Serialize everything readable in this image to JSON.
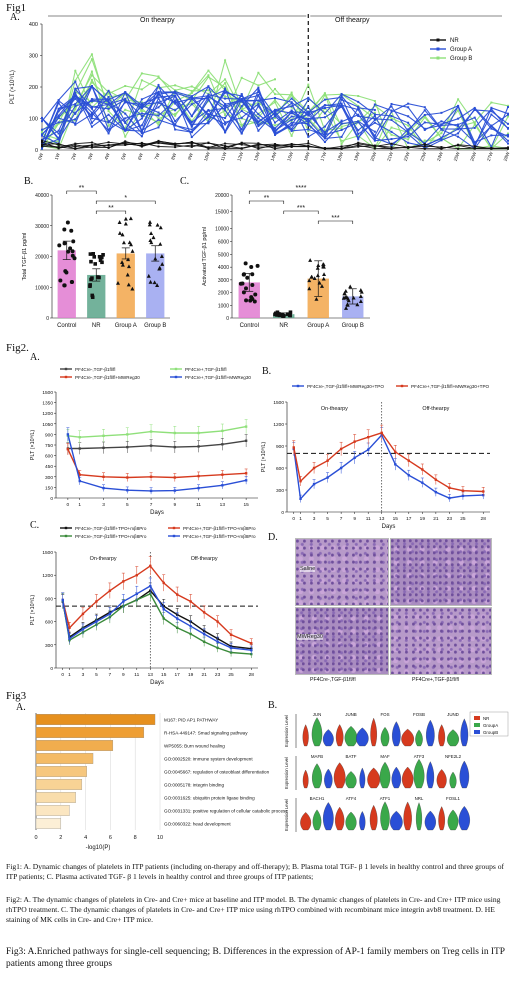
{
  "fig1": {
    "label": "Fig1",
    "panel_a": "A.",
    "panel_b": "B.",
    "panel_c": "C.",
    "on_therapy": "On thearpy",
    "off_therapy": "Off thearpy"
  },
  "fig2": {
    "label": "Fig2.",
    "panel_a": "A.",
    "panel_b": "B.",
    "panel_c": "C.",
    "panel_d": "D.",
    "he": {
      "row1": "Saline",
      "row2": "MWReg30",
      "col1": "PF4Cre-,TGF-β1fl/fl",
      "col2": "PF4Cre+,TGF-β1fl/fl"
    }
  },
  "fig3": {
    "label": "Fig3",
    "panel_a": "A.",
    "panel_b": "B."
  },
  "captions": {
    "fig1": "Fig1: A. Dynamic changes of platelets in ITP patients (including on-therapy and off-therapy); B. Plasma total TGF- β 1 levels in healthy control and three groups of ITP patients; C. Plasma activated TGF- β 1 levels in healthy control and three groups of ITP patients;",
    "fig2": "Fig2: A. The dynamic changes of platelets in Cre- and Cre+ mice at baseline and ITP model. B. The dynamic changes of platelets in Cre- and Cre+ ITP mice using rhTPO treatment. C. The dynamic changes of platelets in Cre- and Cre+ ITP mice using rhTPO combined with recombinant mice integrin avb8 treatment. D. HE staining of MK cells in Cre- and Cre+ ITP mice.",
    "fig3": "Fig3: A.Enriched pathways for single-cell sequencing; B. Differences in the expression of AP-1 family members on Treg cells in ITP patients among three groups"
  },
  "chart_data": [
    {
      "id": "fig1A",
      "type": "line",
      "title": "",
      "xlabel": "",
      "ylabel": "PLT (×10⁹/L)",
      "categories": [
        "0W",
        "1W",
        "2W",
        "3W",
        "4W",
        "5W",
        "6W",
        "7W",
        "8W",
        "9W",
        "10W",
        "11W",
        "12W",
        "13W",
        "14W",
        "15W",
        "16W",
        "17W",
        "18W",
        "19W",
        "20W",
        "21W",
        "22W",
        "23W",
        "24W",
        "25W",
        "26W",
        "27W",
        "28W"
      ],
      "ylim": [
        0,
        400
      ],
      "yticks": [
        0,
        100,
        200,
        300,
        400
      ],
      "legend": [
        "NR",
        "Group A",
        "Group B"
      ],
      "colors": {
        "NR": "#111111",
        "Group A": "#2a4fd6",
        "Group B": "#8fe07a"
      },
      "series_note_values": {
        "NR": [
          20,
          15,
          10,
          12,
          18,
          25,
          22,
          20,
          15,
          18,
          12,
          10,
          15,
          14,
          10,
          12,
          14,
          12,
          10,
          14,
          12,
          10,
          15,
          12,
          10,
          14,
          12,
          10,
          12
        ],
        "Group A (mean)": [
          60,
          90,
          150,
          140,
          120,
          130,
          110,
          140,
          120,
          110,
          135,
          125,
          120,
          130,
          115,
          110,
          100,
          95,
          110,
          90,
          85,
          80,
          90,
          75,
          80,
          85,
          70,
          75,
          70
        ],
        "Group B (mean)": [
          40,
          80,
          180,
          220,
          150,
          130,
          200,
          160,
          190,
          150,
          170,
          200,
          140,
          160,
          150,
          130,
          120,
          110,
          100,
          95,
          90,
          80,
          85,
          70,
          80,
          75,
          65,
          70,
          60
        ]
      }
    },
    {
      "id": "fig1B",
      "type": "bar",
      "ylabel": "Total TGF-β1 pg/ml",
      "categories": [
        "Control",
        "NR",
        "Group A",
        "Group B"
      ],
      "values": [
        22000,
        14000,
        21000,
        21000
      ],
      "errors": [
        3000,
        2000,
        1800,
        2500
      ],
      "ylim": [
        0,
        40000
      ],
      "yticks": [
        0,
        10000,
        20000,
        30000,
        40000
      ],
      "colors": [
        "#e07ad0",
        "#5aa58a",
        "#f2a64a",
        "#9aa3f0"
      ],
      "sig": [
        {
          "from": 0,
          "to": 1,
          "label": "**"
        },
        {
          "from": 1,
          "to": 3,
          "label": "*"
        },
        {
          "from": 1,
          "to": 2,
          "label": "**"
        }
      ]
    },
    {
      "id": "fig1C",
      "type": "bar",
      "ylabel": "Activated TGF-β1 pg/ml",
      "categories": [
        "Control",
        "NR",
        "Group A",
        "Group B"
      ],
      "values": [
        2800,
        300,
        3100,
        1700
      ],
      "errors": [
        700,
        100,
        1400,
        600
      ],
      "ylim": [
        0,
        20000
      ],
      "yticks": [
        0,
        1000,
        2000,
        3000,
        4000,
        5000,
        6000,
        10000,
        15000,
        20000
      ],
      "colors": [
        "#e07ad0",
        "#5aa58a",
        "#f2a64a",
        "#9aa3f0"
      ],
      "sig": [
        {
          "from": 0,
          "to": 3,
          "label": "****"
        },
        {
          "from": 0,
          "to": 1,
          "label": "**"
        },
        {
          "from": 1,
          "to": 2,
          "label": "***"
        },
        {
          "from": 2,
          "to": 3,
          "label": "***"
        }
      ]
    },
    {
      "id": "fig2A",
      "type": "line",
      "xlabel": "Days",
      "ylabel": "PLT (×10⁹/L)",
      "x": [
        0,
        1,
        3,
        5,
        7,
        9,
        11,
        13,
        15
      ],
      "xlim": [
        -1,
        16
      ],
      "ylim": [
        0,
        1500
      ],
      "yticks": [
        0,
        150,
        300,
        450,
        600,
        750,
        900,
        1050,
        1200,
        1350,
        1500
      ],
      "xticks": [
        0,
        1,
        3,
        5,
        7,
        9,
        11,
        13,
        15
      ],
      "series": [
        {
          "name": "PF4Cre-,TGF-β1fl/fl",
          "color": "#444444",
          "values": [
            700,
            700,
            710,
            720,
            740,
            720,
            730,
            760,
            810
          ]
        },
        {
          "name": "PF4Cre+,TGF-β1fl/fl",
          "color": "#8fe07a",
          "values": [
            880,
            860,
            880,
            900,
            940,
            920,
            920,
            950,
            1010
          ]
        },
        {
          "name": "PF4Cre-,TGF-β1fl/fl+MWReg30",
          "color": "#d63a1e",
          "values": [
            690,
            330,
            300,
            290,
            300,
            290,
            310,
            330,
            350
          ]
        },
        {
          "name": "PF4Cre+,TGF-β1fl/fl+MWReg30",
          "color": "#2a4fd6",
          "values": [
            900,
            240,
            140,
            110,
            100,
            105,
            140,
            180,
            250
          ]
        }
      ]
    },
    {
      "id": "fig2B",
      "type": "line",
      "xlabel": "Days",
      "ylabel": "PLT (×10⁹/L)",
      "x": [
        0,
        1,
        3,
        5,
        7,
        9,
        11,
        13,
        15,
        17,
        19,
        21,
        23,
        25,
        28
      ],
      "xlim": [
        -1,
        29
      ],
      "ylim": [
        0,
        1500
      ],
      "yticks": [
        0,
        300,
        600,
        900,
        1200,
        1500
      ],
      "xticks": [
        0,
        1,
        3,
        5,
        7,
        9,
        11,
        13,
        15,
        17,
        19,
        21,
        23,
        25,
        28
      ],
      "reference_y": 800,
      "therapy_end_x": 13,
      "on_label": "On-thearpy",
      "off_label": "Off-thearpy",
      "series": [
        {
          "name": "PF4Cre-,TGF-β1fl/fl+MWReg30+TPO",
          "color": "#2a4fd6",
          "values": [
            860,
            180,
            380,
            470,
            600,
            740,
            850,
            1050,
            650,
            500,
            400,
            270,
            190,
            220,
            230
          ]
        },
        {
          "name": "PF4Cre+,TGF-β1fl/fl+MWReg30+TPO",
          "color": "#d63a1e",
          "values": [
            880,
            420,
            600,
            700,
            860,
            960,
            1020,
            1080,
            820,
            700,
            580,
            440,
            330,
            290,
            280
          ]
        }
      ]
    },
    {
      "id": "fig2C",
      "type": "line",
      "xlabel": "Days",
      "ylabel": "PLT (×10⁹/L)",
      "x": [
        0,
        1,
        3,
        5,
        7,
        9,
        11,
        13,
        15,
        17,
        19,
        21,
        23,
        25,
        28
      ],
      "xlim": [
        -1,
        29
      ],
      "ylim": [
        0,
        1500
      ],
      "yticks": [
        0,
        300,
        600,
        900,
        1200,
        1500
      ],
      "xticks": [
        0,
        1,
        3,
        5,
        7,
        9,
        11,
        13,
        15,
        17,
        19,
        21,
        23,
        25,
        28
      ],
      "reference_y": 800,
      "therapy_end_x": 13,
      "on_label": "On-thearpy",
      "off_label": "Off-thearpy",
      "series": [
        {
          "name": "PF4Cre-,TGF-β1fl/fl+TPO+mβ8Pro",
          "color": "#111111",
          "values": [
            860,
            400,
            520,
            620,
            720,
            800,
            880,
            1000,
            800,
            690,
            600,
            480,
            380,
            280,
            250
          ]
        },
        {
          "name": "PF4Cre+,TGF-β1fl/fl+TPO+mβ8Pro",
          "color": "#d63a1e",
          "values": [
            880,
            520,
            700,
            860,
            1000,
            1120,
            1200,
            1320,
            1100,
            950,
            860,
            720,
            600,
            430,
            320
          ]
        },
        {
          "name": "PF4Cre-,TGF-β1fl/fl+TPO+mβ8Pro",
          "color": "#3a8a3a",
          "values": [
            870,
            360,
            460,
            560,
            660,
            800,
            880,
            960,
            640,
            520,
            440,
            340,
            260,
            200,
            180
          ]
        },
        {
          "name": "PF4Cre+,TGF-β1fl/fl+TPO+mβ8Pro",
          "color": "#2a4fd6",
          "values": [
            880,
            380,
            500,
            600,
            700,
            860,
            960,
            1060,
            760,
            640,
            540,
            440,
            340,
            260,
            230
          ]
        }
      ]
    },
    {
      "id": "fig3A",
      "type": "bar",
      "orientation": "horizontal",
      "xlabel": "-log10(P)",
      "xticks": [
        0,
        2,
        4,
        6,
        8,
        10
      ],
      "xlim": [
        0,
        10
      ],
      "categories": [
        "M167: PID AP1 PATHWAY",
        "R-HSA-449147: Smad signaling pathway",
        "WP5055: Burn wound healing",
        "GO:0002520: immune system development",
        "GO:0045667: regulation of osteoblast differentiation",
        "GO:0005178: integrin binding",
        "GO:0031625: ubiquitin protein ligase binding",
        "GO:0031331: positive regulation of cellular catabolic process",
        "GO:0060322: head development"
      ],
      "values": [
        9.6,
        8.7,
        6.2,
        4.6,
        4.1,
        3.7,
        3.2,
        2.7,
        2.0
      ],
      "colors": [
        "#e6901e",
        "#ee9e33",
        "#f1ad4e",
        "#f4bb66",
        "#f6c77e",
        "#f8d395",
        "#f9ddab",
        "#fbe6c1",
        "#fcefd6"
      ]
    },
    {
      "id": "fig3B",
      "type": "violin",
      "ylabel": "Expression Level",
      "legend": [
        "NR",
        "GroupA",
        "GroupB"
      ],
      "colors": {
        "NR": "#d63a1e",
        "GroupA": "#3aa84a",
        "GroupB": "#2a4fd6"
      },
      "genes": [
        [
          "JUN",
          "JUNB",
          "FOS",
          "FOSB",
          "JUND"
        ],
        [
          "MAFB",
          "BATF",
          "MAF",
          "ATF3",
          "NFE2L2"
        ],
        [
          "BACH1",
          "ATF4",
          "ATF1",
          "NRL",
          "FOSL1"
        ]
      ]
    }
  ]
}
